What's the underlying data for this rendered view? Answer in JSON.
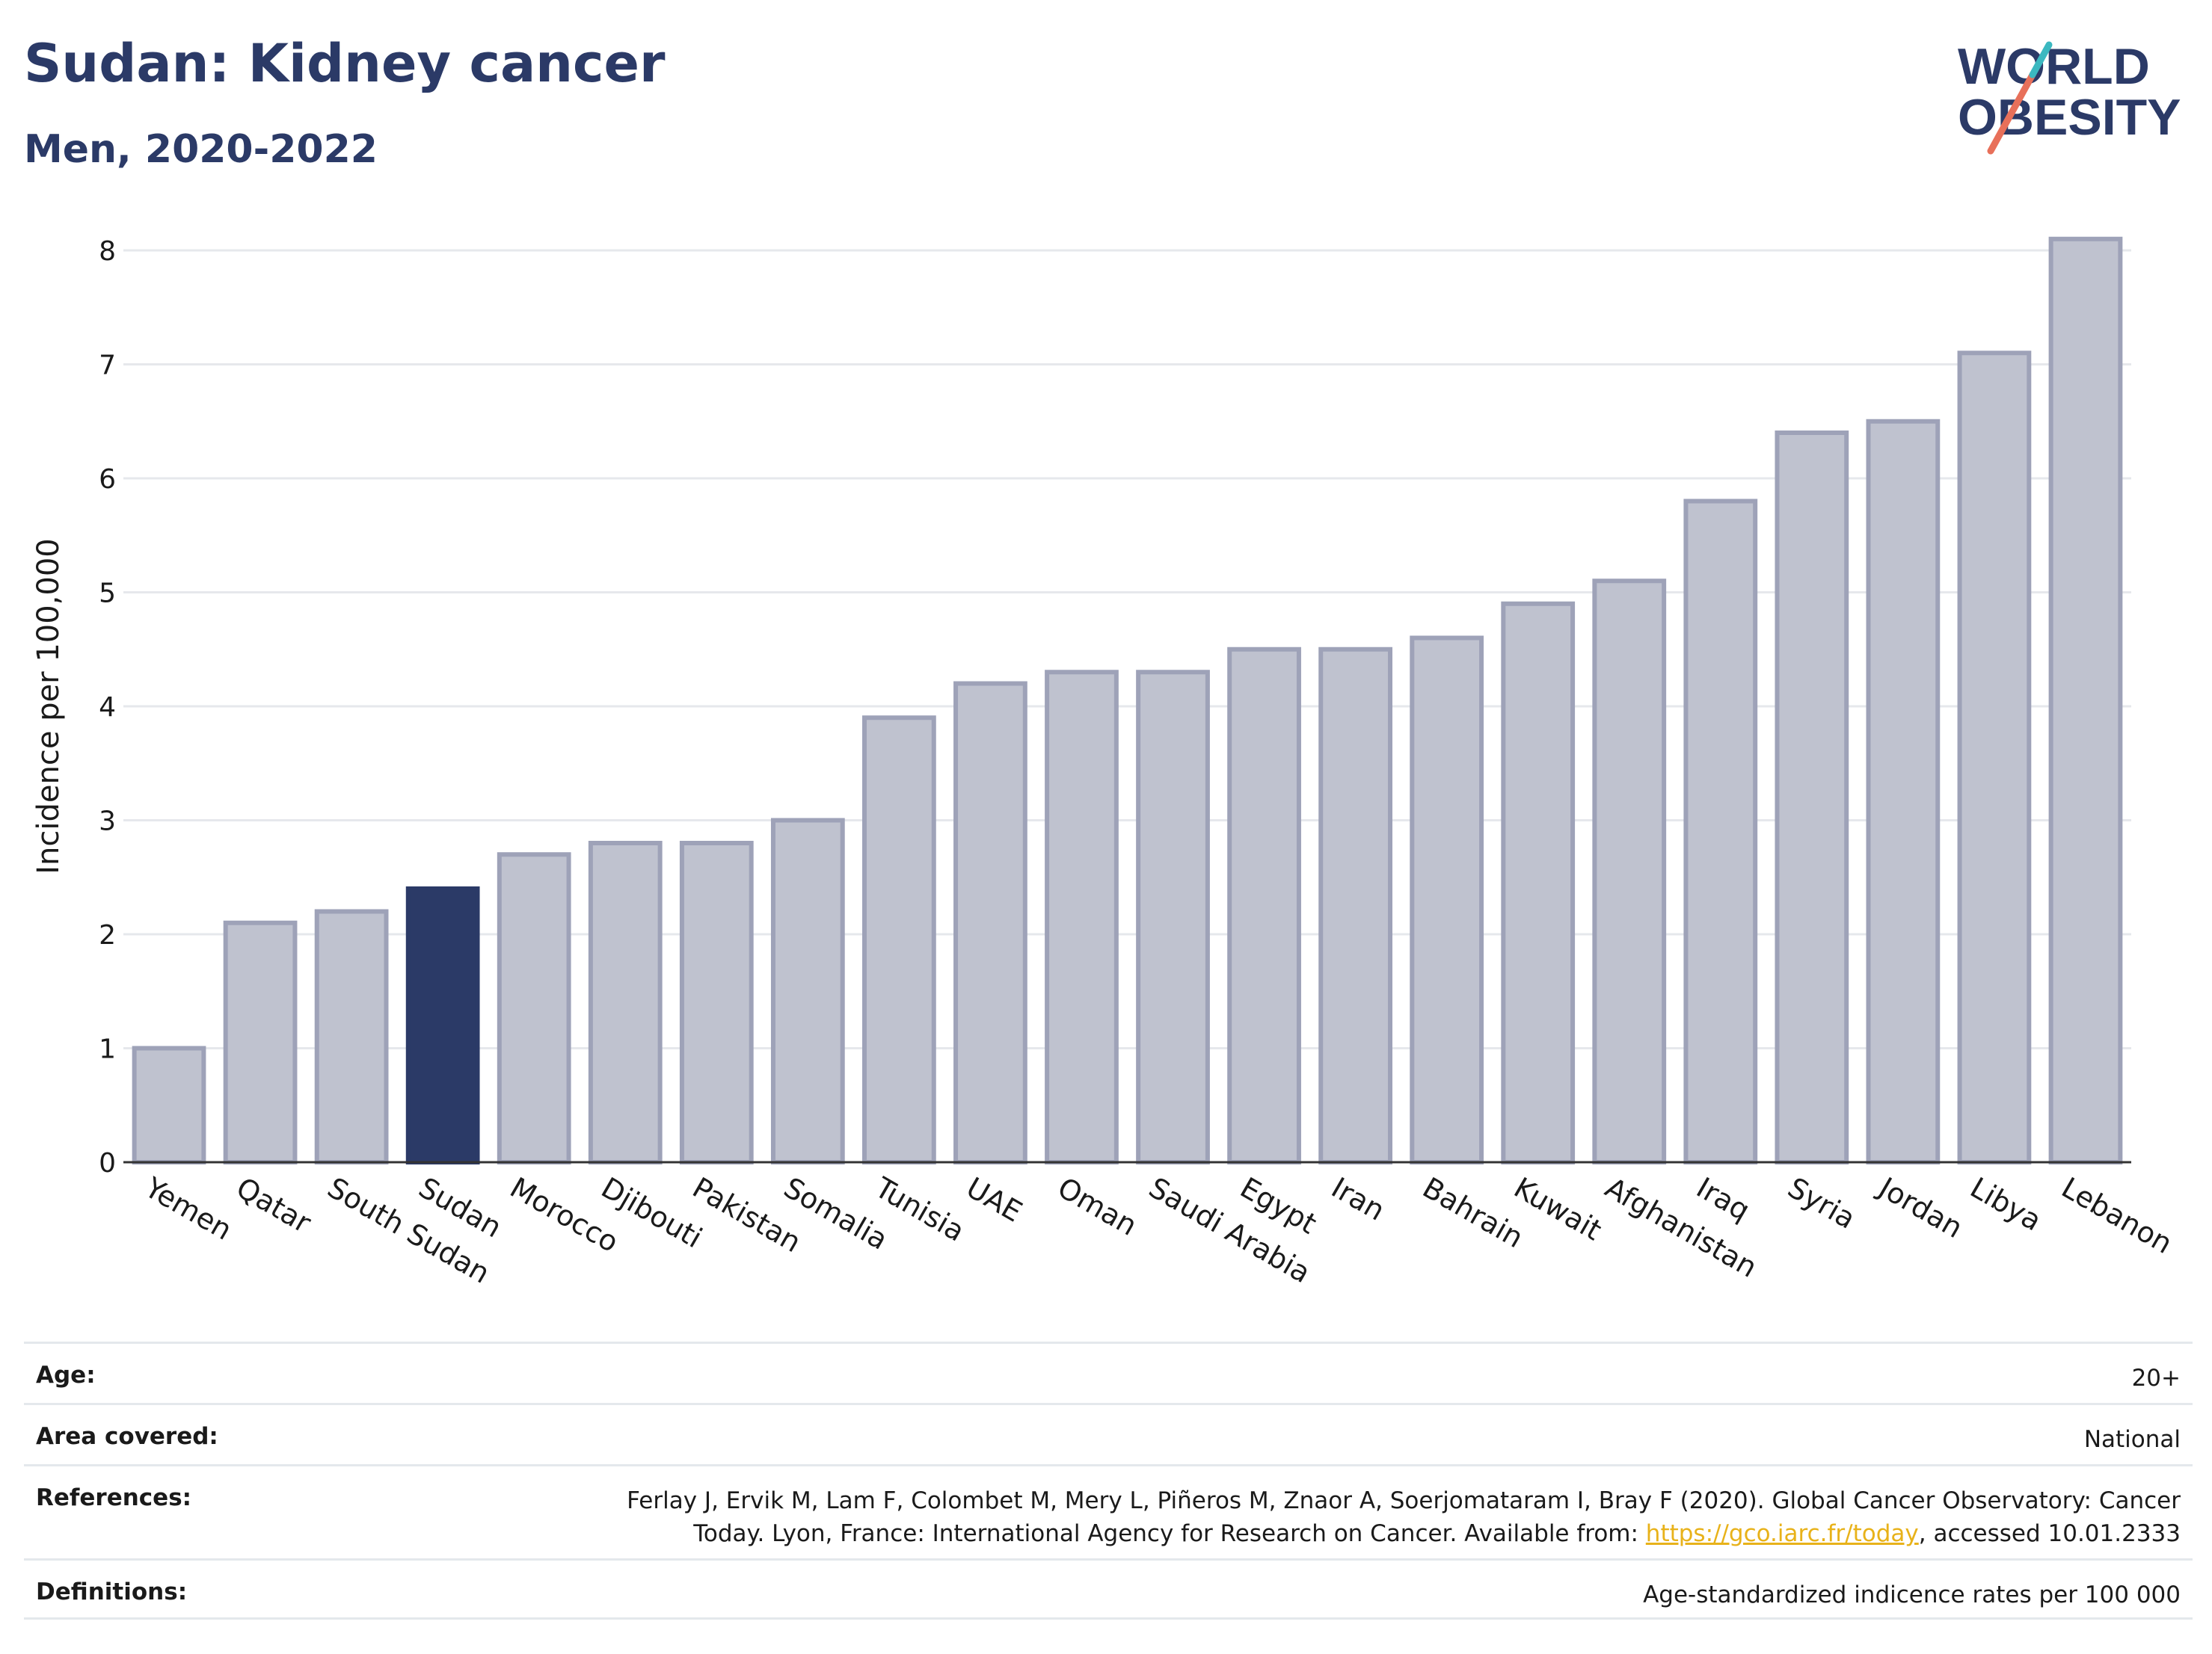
{
  "header": {
    "title": "Sudan: Kidney cancer",
    "subtitle": "Men, 2020-2022"
  },
  "logo": {
    "line1": "WORLD",
    "line2": "OBESITY"
  },
  "colors": {
    "highlight": "#2b3a67",
    "bar_fill": "#bfc2cf",
    "bar_stroke": "#9ea2b8",
    "link": "#e8b21a"
  },
  "chart_data": {
    "type": "bar",
    "ylabel": "Incidence per 100,000",
    "xlabel": "",
    "ylim": [
      0,
      8.3
    ],
    "yticks": [
      0,
      1,
      2,
      3,
      4,
      5,
      6,
      7,
      8
    ],
    "grid": true,
    "highlight": "Sudan",
    "categories": [
      "Yemen",
      "Qatar",
      "South Sudan",
      "Sudan",
      "Morocco",
      "Djibouti",
      "Pakistan",
      "Somalia",
      "Tunisia",
      "UAE",
      "Oman",
      "Saudi Arabia",
      "Egypt",
      "Iran",
      "Bahrain",
      "Kuwait",
      "Afghanistan",
      "Iraq",
      "Syria",
      "Jordan",
      "Libya",
      "Lebanon"
    ],
    "values": [
      1.0,
      2.1,
      2.2,
      2.4,
      2.7,
      2.8,
      2.8,
      3.0,
      3.9,
      4.2,
      4.3,
      4.3,
      4.5,
      4.5,
      4.6,
      4.9,
      5.1,
      5.8,
      6.4,
      6.5,
      7.1,
      8.1
    ]
  },
  "info": {
    "age_label": "Age:",
    "age_value": "20+",
    "area_label": "Area covered:",
    "area_value": "National",
    "references_label": "References:",
    "references_line1": "Ferlay J, Ervik M, Lam F, Colombet M, Mery L, Piñeros M, Znaor A, Soerjomataram I, Bray F (2020). Global Cancer Observatory: Cancer",
    "references_line2_pre": "Today. Lyon, France: International Agency for Research on Cancer. Available from: ",
    "references_link": "https://gco.iarc.fr/today",
    "references_line2_post": ", accessed 10.01.2333",
    "definitions_label": "Definitions:",
    "definitions_value": "Age-standardized indicence rates per 100 000"
  }
}
